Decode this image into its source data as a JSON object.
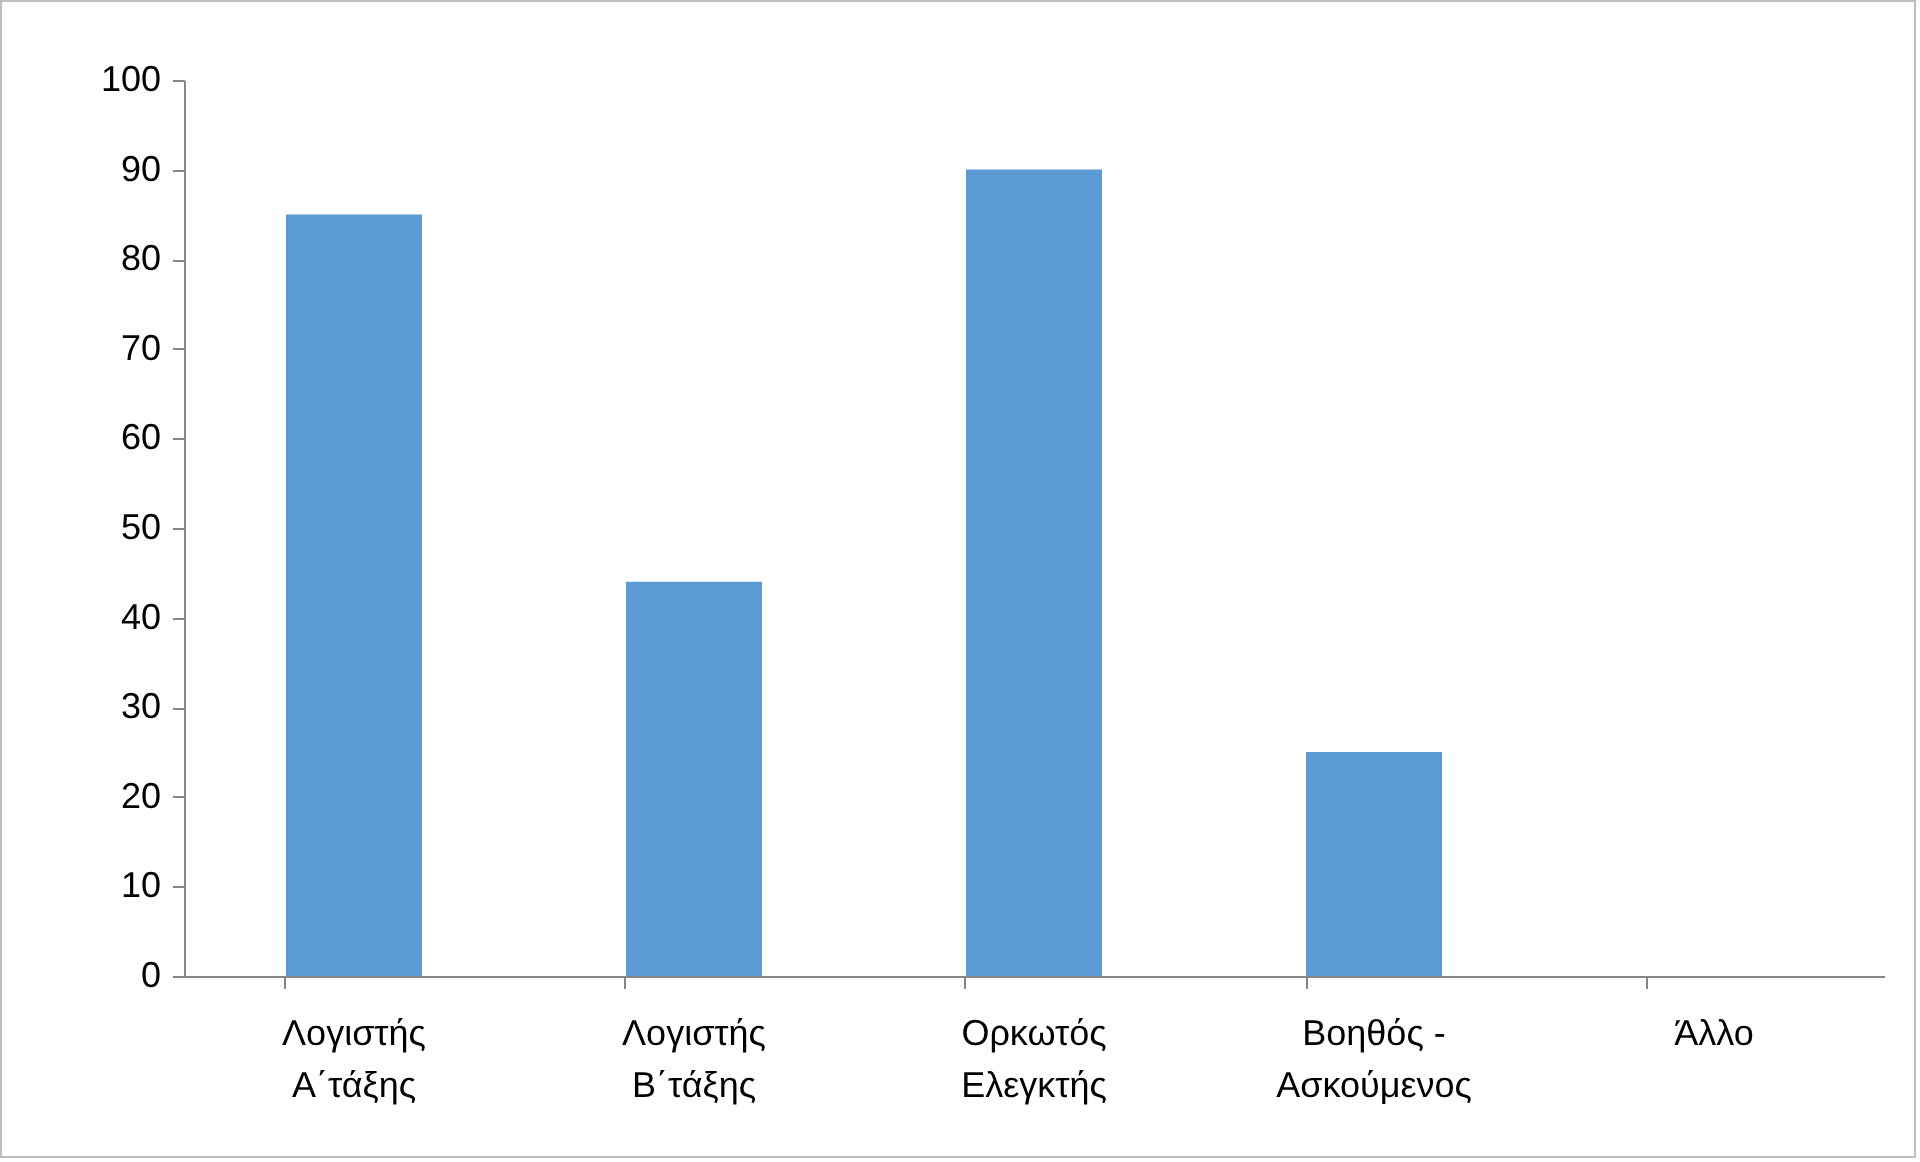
{
  "chart_data": {
    "type": "bar",
    "categories": [
      "Λογιστής\nΑ΄τάξης",
      "Λογιστής\nΒ΄τάξης",
      "Ορκωτός\nΕλεγκτής",
      "Βοηθός -\nΑσκούμενος",
      "Άλλο"
    ],
    "values": [
      85,
      44,
      90,
      25,
      0
    ],
    "color": "#5b9bd5",
    "ylim": [
      0,
      100
    ],
    "yticks": [
      0,
      10,
      20,
      30,
      40,
      50,
      60,
      70,
      80,
      90,
      100
    ],
    "grid": false,
    "legend": false
  }
}
